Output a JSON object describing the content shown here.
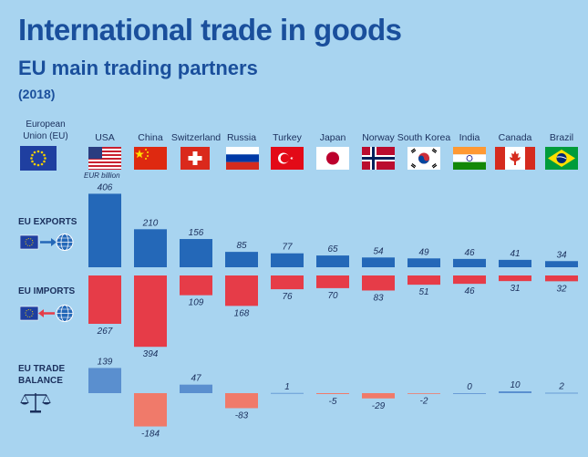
{
  "header": {
    "title": "International trade in goods",
    "subtitle": "EU main trading partners",
    "year": "(2018)"
  },
  "eu_label": "European Union (EU)",
  "unit_label": "EUR billion",
  "sections": {
    "exports": "EU EXPORTS",
    "imports": "EU IMPORTS",
    "balance_line1": "EU TRADE",
    "balance_line2": "BALANCE"
  },
  "colors": {
    "background": "#a8d4f0",
    "exports": "#2468b8",
    "imports": "#e63c48",
    "balance_pos": "#5a8fcf",
    "balance_neg": "#f07a6a",
    "title": "#1a4f9c"
  },
  "chart_data": {
    "type": "bar",
    "categories": [
      "USA",
      "China",
      "Switzerland",
      "Russia",
      "Turkey",
      "Japan",
      "Norway",
      "South Korea",
      "India",
      "Canada",
      "Brazil"
    ],
    "series": [
      {
        "name": "EU EXPORTS",
        "values": [
          406,
          210,
          156,
          85,
          77,
          65,
          54,
          49,
          46,
          41,
          34
        ]
      },
      {
        "name": "EU IMPORTS",
        "values": [
          267,
          394,
          109,
          168,
          76,
          70,
          83,
          51,
          46,
          31,
          32
        ]
      },
      {
        "name": "EU TRADE BALANCE",
        "values": [
          139,
          -184,
          47,
          -83,
          1,
          -5,
          -29,
          -2,
          0,
          10,
          2
        ]
      }
    ],
    "ylabel": "EUR billion"
  }
}
